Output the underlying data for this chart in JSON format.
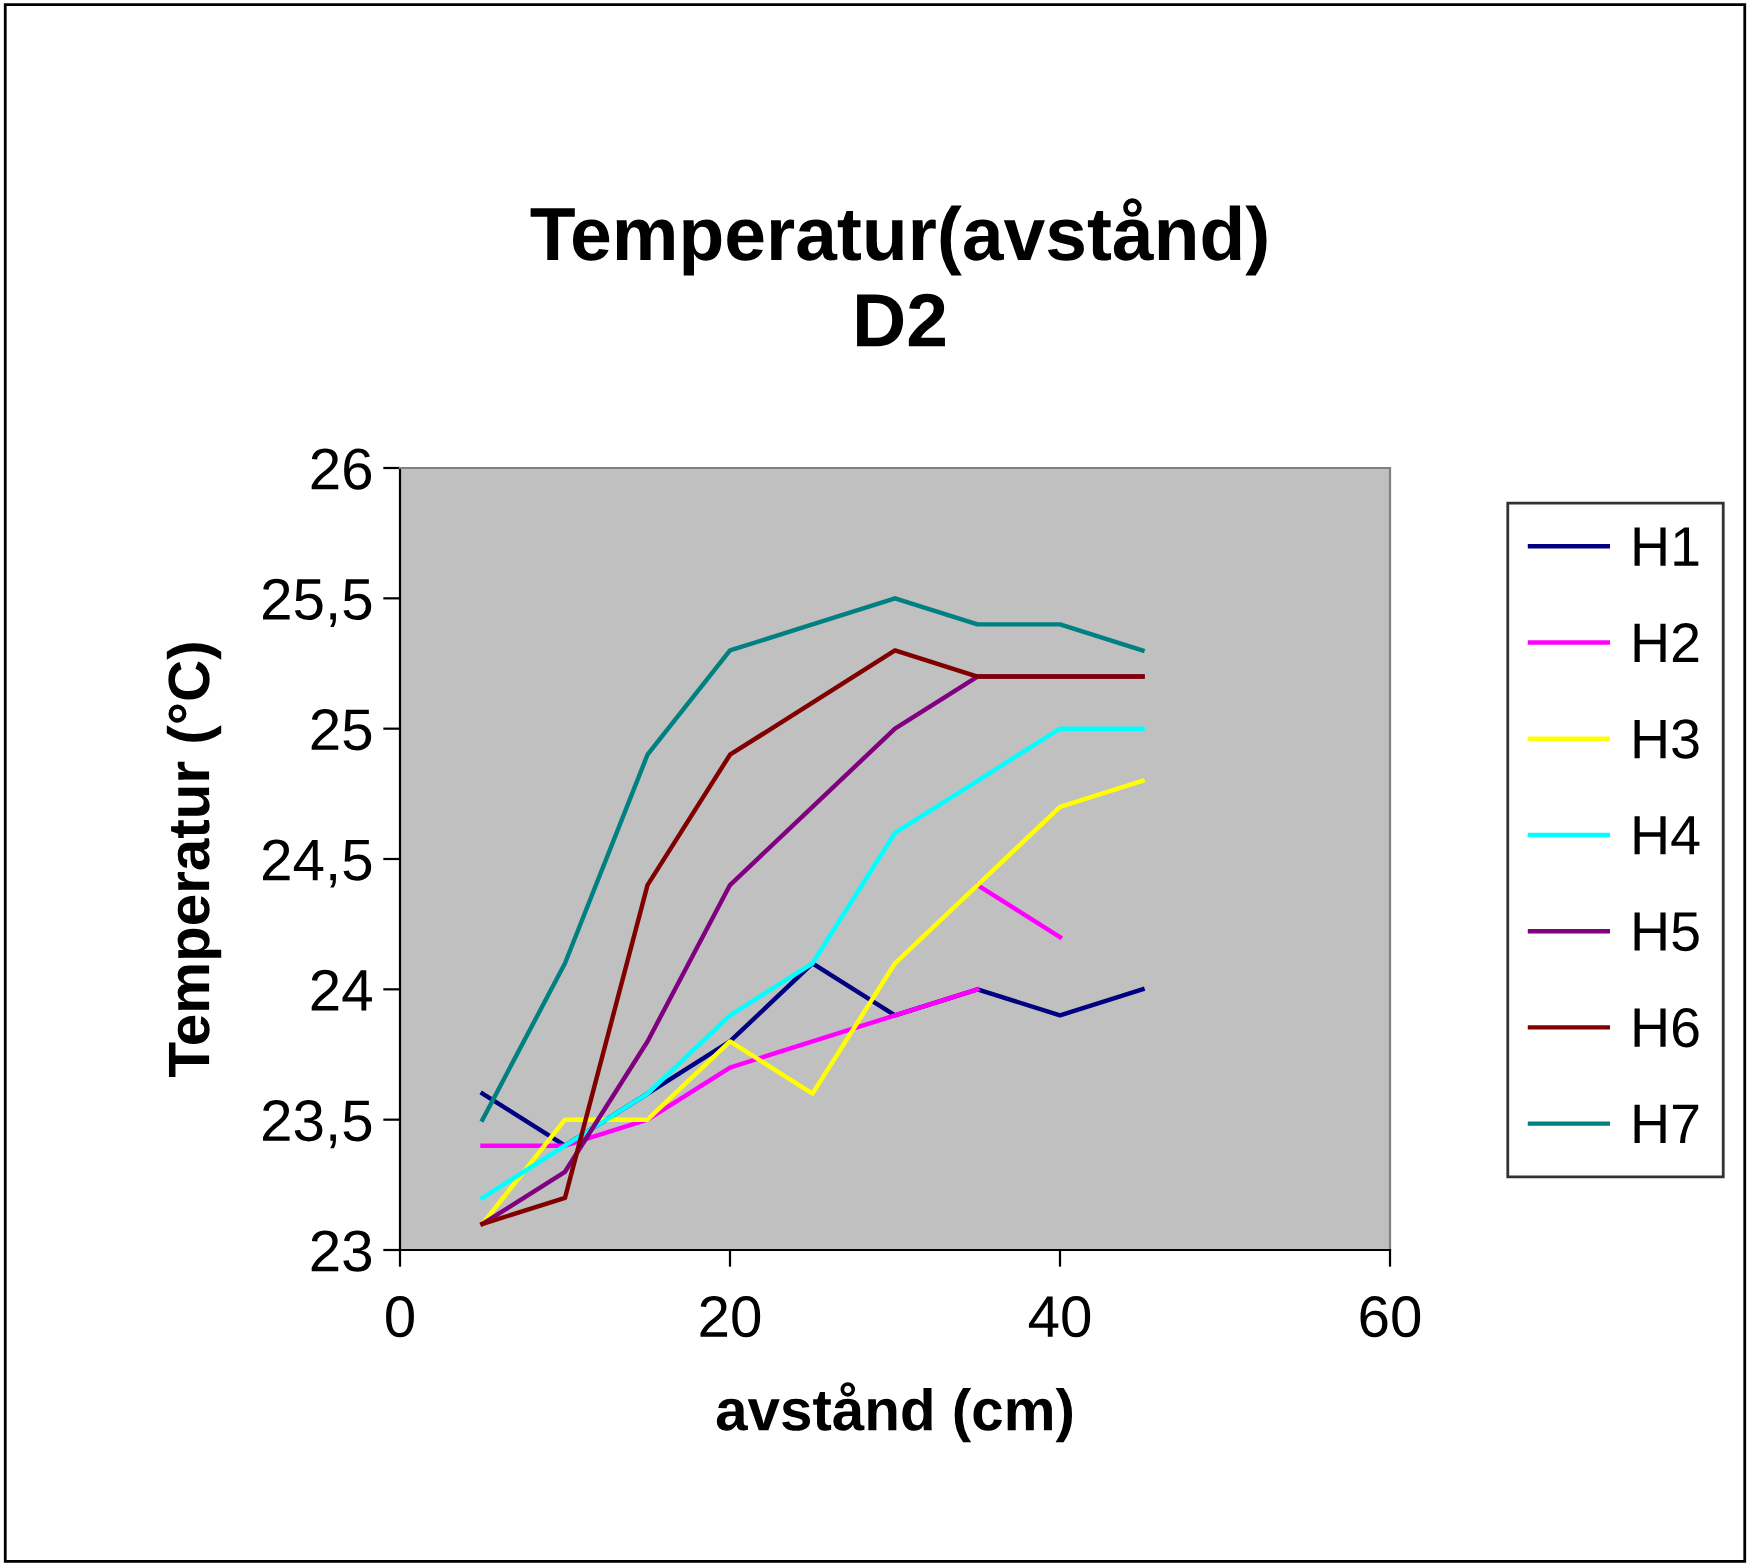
{
  "chart_data": {
    "type": "line",
    "title": "Temperatur(avstånd)\nD2",
    "xlabel": "avstånd (cm)",
    "ylabel": "Temperatur (°C)",
    "x": [
      5,
      10,
      15,
      20,
      25,
      30,
      35,
      40,
      45
    ],
    "xlim": [
      0,
      60
    ],
    "xticks": [
      0,
      20,
      40,
      60
    ],
    "ylim": [
      23,
      26
    ],
    "yticks": [
      {
        "value": 23,
        "label": "23"
      },
      {
        "value": 23.5,
        "label": "23,5"
      },
      {
        "value": 24,
        "label": "24"
      },
      {
        "value": 24.5,
        "label": "24,5"
      },
      {
        "value": 25,
        "label": "25"
      },
      {
        "value": 25.5,
        "label": "25,5"
      },
      {
        "value": 26,
        "label": "26"
      }
    ],
    "grid": false,
    "legend": "right",
    "marker": "none",
    "line_style": "solid",
    "series": [
      {
        "name": "H1",
        "color": "#000080",
        "values": [
          23.6,
          23.4,
          23.6,
          23.8,
          24.1,
          23.9,
          24.0,
          23.9,
          24.0
        ]
      },
      {
        "name": "H2",
        "color": "#ff00ff",
        "x": [
          5,
          10,
          15,
          20,
          25,
          30,
          35,
          null,
          35,
          40
        ],
        "values": [
          23.4,
          23.4,
          23.5,
          23.7,
          23.8,
          23.9,
          24.0,
          null,
          24.4,
          24.2
        ]
      },
      {
        "name": "H3",
        "color": "#ffff00",
        "values": [
          23.1,
          23.5,
          23.5,
          23.8,
          23.6,
          24.1,
          24.4,
          24.7,
          24.8
        ]
      },
      {
        "name": "H4",
        "color": "#00ffff",
        "values": [
          23.2,
          23.4,
          23.6,
          23.9,
          24.1,
          24.6,
          24.8,
          25.0,
          25.0
        ]
      },
      {
        "name": "H5",
        "color": "#800080",
        "values": [
          23.1,
          23.3,
          23.8,
          24.4,
          24.7,
          25.0,
          25.2,
          25.2,
          25.2
        ]
      },
      {
        "name": "H6",
        "color": "#800000",
        "values": [
          23.1,
          23.2,
          24.4,
          24.9,
          25.1,
          25.3,
          25.2,
          25.2,
          25.2
        ]
      },
      {
        "name": "H7",
        "color": "#008080",
        "values": [
          23.5,
          24.1,
          24.9,
          25.3,
          25.4,
          25.5,
          25.4,
          25.4,
          25.3
        ]
      }
    ]
  }
}
